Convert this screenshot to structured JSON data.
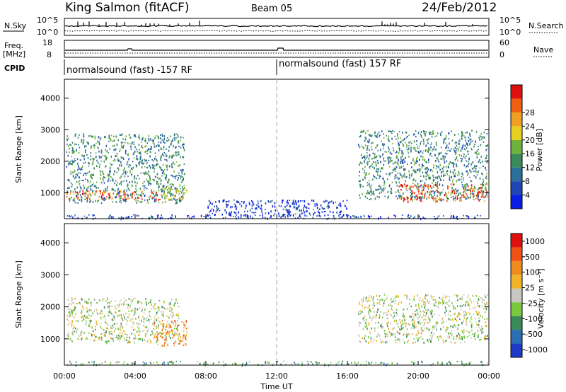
{
  "header": {
    "station": "King Salmon (fitACF)",
    "beam": "Beam 05",
    "date": "24/Feb/2012"
  },
  "nsky_panel": {
    "left_label": "N.Sky",
    "right_label": "N.Search",
    "left_ticks": [
      "10^5",
      "10^0"
    ],
    "right_ticks": [
      "10^5",
      "10^0"
    ]
  },
  "freq_panel": {
    "left_label_1": "Freq.",
    "left_label_2": "[MHz]",
    "right_label": "Nave",
    "left_ticks": [
      "18",
      "8"
    ],
    "right_ticks": [
      "60",
      "0"
    ]
  },
  "cpid_panel": {
    "label": "CPID",
    "segments": [
      "normalsound (fast) -157 RF",
      "normalsound (fast) 157 RF"
    ]
  },
  "chart_data": [
    {
      "type": "heatmap",
      "name": "power",
      "ylabel": "Slant Range [km]",
      "x_ticks": [
        "00:00",
        "04:00",
        "08:00",
        "12:00",
        "16:00",
        "20:00",
        "00:00"
      ],
      "y_ticks": [
        1000,
        2000,
        3000,
        4000
      ],
      "xlim_hours": [
        0,
        24
      ],
      "ylim_km": [
        180,
        4600
      ],
      "colorbar": {
        "label": "Power [dB]",
        "ticks": [
          "4",
          "8",
          "12",
          "16",
          "20",
          "24",
          "28"
        ],
        "colors": [
          "#0a1ee6",
          "#1e46b4",
          "#2a6e9a",
          "#3a8a5a",
          "#6eb43c",
          "#e6d21e",
          "#f0a020",
          "#f06010",
          "#e01010"
        ]
      },
      "regions": [
        {
          "t0": 0.1,
          "t1": 6.8,
          "r0": 700,
          "r1": 2900,
          "level": 0.35
        },
        {
          "t0": 0.1,
          "t1": 5.5,
          "r0": 800,
          "r1": 1100,
          "level": 0.85
        },
        {
          "t0": 5.6,
          "t1": 7.0,
          "r0": 800,
          "r1": 1200,
          "level": 0.6
        },
        {
          "t0": 16.6,
          "t1": 23.9,
          "r0": 800,
          "r1": 3000,
          "level": 0.35
        },
        {
          "t0": 18.8,
          "t1": 23.9,
          "r0": 750,
          "r1": 1300,
          "level": 0.85
        },
        {
          "t0": 0.1,
          "t1": 23.9,
          "r0": 200,
          "r1": 320,
          "level": 0.15
        },
        {
          "t0": 8.0,
          "t1": 16.0,
          "r0": 300,
          "r1": 800,
          "level": 0.1
        }
      ]
    },
    {
      "type": "heatmap",
      "name": "velocity",
      "ylabel": "Slant Range [km]",
      "x_ticks": [
        "00:00",
        "04:00",
        "08:00",
        "12:00",
        "16:00",
        "20:00",
        "00:00"
      ],
      "xlabel": "Time UT",
      "y_ticks": [
        1000,
        2000,
        3000,
        4000
      ],
      "xlim_hours": [
        0,
        24
      ],
      "ylim_km": [
        180,
        4600
      ],
      "colorbar": {
        "label": "Velocity [m s⁻¹]",
        "ticks": [
          "1000",
          "500",
          "100",
          "25",
          "-25",
          "-100",
          "-500",
          "-1000"
        ],
        "colors": [
          "#1e3cc8",
          "#2a6eb4",
          "#3a8a5a",
          "#7ac83c",
          "#c8c8c0",
          "#f0b428",
          "#f08c1e",
          "#f05014",
          "#e01010"
        ]
      },
      "regions": [
        {
          "t0": 0.1,
          "t1": 6.5,
          "r0": 900,
          "r1": 2300,
          "level": 0.45
        },
        {
          "t0": 5.0,
          "t1": 6.9,
          "r0": 800,
          "r1": 1600,
          "level": 0.72
        },
        {
          "t0": 16.6,
          "t1": 23.9,
          "r0": 900,
          "r1": 2400,
          "level": 0.45
        },
        {
          "t0": 0.1,
          "t1": 23.9,
          "r0": 200,
          "r1": 320,
          "level": 0.3
        }
      ]
    }
  ]
}
